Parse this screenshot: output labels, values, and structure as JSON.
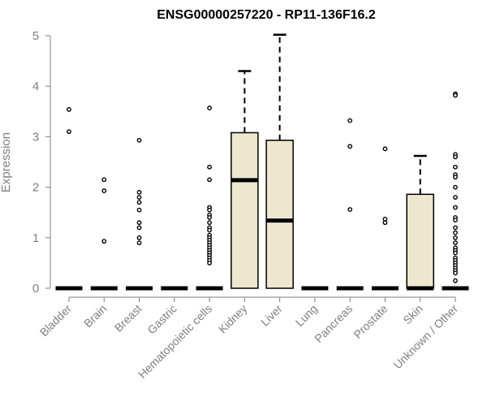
{
  "chart_data": {
    "type": "box",
    "title": "ENSG00000257220 - RP11-136F16.2",
    "xlabel": "",
    "ylabel": "Expression",
    "ylim": [
      0,
      5
    ],
    "yticks": [
      0,
      1,
      2,
      3,
      4,
      5
    ],
    "grid": false,
    "colors": {
      "box_fill": "#ede7cf",
      "outline": "#000000",
      "axis": "#7f7f7f",
      "text": "#7f7f7f"
    },
    "categories": [
      "Bladder",
      "Brain",
      "Breast",
      "Gastric",
      "Hematopoietic cells",
      "Kidney",
      "Liver",
      "Lung",
      "Pancreas",
      "Prostate",
      "Skin",
      "Unknown / Other"
    ],
    "boxes": [
      {
        "category": "Bladder",
        "q1": 0,
        "median": 0,
        "q3": 0,
        "whisker_low": 0,
        "whisker_high": 0,
        "outliers": [
          3.54,
          3.1
        ]
      },
      {
        "category": "Brain",
        "q1": 0,
        "median": 0,
        "q3": 0,
        "whisker_low": 0,
        "whisker_high": 0,
        "outliers": [
          2.15,
          1.93,
          0.93
        ]
      },
      {
        "category": "Breast",
        "q1": 0,
        "median": 0,
        "q3": 0,
        "whisker_low": 0,
        "whisker_high": 0,
        "outliers": [
          2.93,
          1.9,
          1.8,
          1.7,
          1.55,
          1.3,
          1.2,
          1.0,
          0.9
        ]
      },
      {
        "category": "Gastric",
        "q1": 0,
        "median": 0,
        "q3": 0,
        "whisker_low": 0,
        "whisker_high": 0,
        "outliers": []
      },
      {
        "category": "Hematopoietic cells",
        "q1": 0,
        "median": 0,
        "q3": 0,
        "whisker_low": 0,
        "whisker_high": 0,
        "outliers": [
          3.57,
          2.4,
          2.15,
          1.6,
          1.55,
          1.45,
          1.4,
          1.3,
          1.2,
          1.15,
          1.05,
          1.0,
          0.95,
          0.9,
          0.85,
          0.8,
          0.75,
          0.7,
          0.65,
          0.6,
          0.55,
          0.5
        ]
      },
      {
        "category": "Kidney",
        "q1": 0,
        "median": 2.14,
        "q3": 3.08,
        "whisker_low": 0,
        "whisker_high": 4.3,
        "outliers": []
      },
      {
        "category": "Liver",
        "q1": 0,
        "median": 1.34,
        "q3": 2.93,
        "whisker_low": 0,
        "whisker_high": 5.02,
        "outliers": []
      },
      {
        "category": "Lung",
        "q1": 0,
        "median": 0,
        "q3": 0,
        "whisker_low": 0,
        "whisker_high": 0,
        "outliers": []
      },
      {
        "category": "Pancreas",
        "q1": 0,
        "median": 0,
        "q3": 0,
        "whisker_low": 0,
        "whisker_high": 0,
        "outliers": [
          3.32,
          2.81,
          1.56
        ]
      },
      {
        "category": "Prostate",
        "q1": 0,
        "median": 0,
        "q3": 0,
        "whisker_low": 0,
        "whisker_high": 0,
        "outliers": [
          2.76,
          1.37,
          1.3
        ]
      },
      {
        "category": "Skin",
        "q1": 0,
        "median": 0,
        "q3": 1.86,
        "whisker_low": 0,
        "whisker_high": 2.62,
        "outliers": []
      },
      {
        "category": "Unknown / Other",
        "q1": 0,
        "median": 0,
        "q3": 0,
        "whisker_low": 0,
        "whisker_high": 0,
        "outliers": [
          3.85,
          3.82,
          2.65,
          2.6,
          2.4,
          2.25,
          2.2,
          2.0,
          1.8,
          1.6,
          1.4,
          1.35,
          1.2,
          1.1,
          1.0,
          0.9,
          0.8,
          0.75,
          0.7,
          0.6,
          0.55,
          0.5,
          0.45,
          0.4,
          0.35,
          0.3,
          0.15
        ]
      }
    ]
  }
}
